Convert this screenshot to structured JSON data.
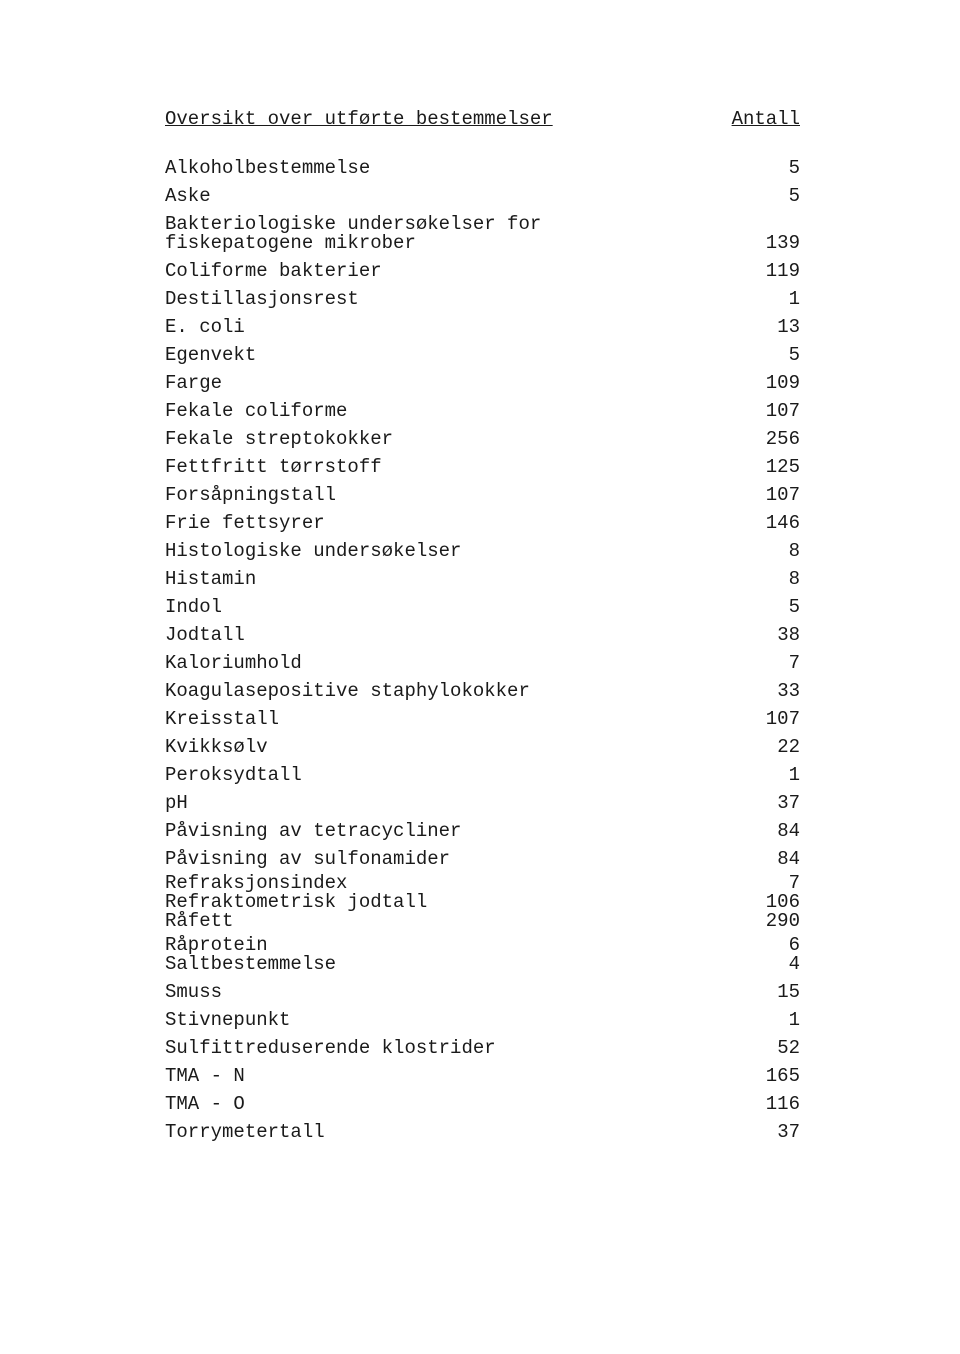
{
  "header": {
    "left": "Oversikt over utførte bestemmelser",
    "right": "Antall"
  },
  "rows": [
    {
      "label": "Alkoholbestemmelse",
      "value": "5"
    },
    {
      "label": "Aske",
      "value": "5"
    },
    {
      "label": "Bakteriologiske undersøkelser for\nfiskepatogene mikrober",
      "value": "139"
    },
    {
      "label": "Coliforme bakterier",
      "value": "119"
    },
    {
      "label": "Destillasjonsrest",
      "value": "1"
    },
    {
      "label": "E. coli",
      "value": "13"
    },
    {
      "label": "Egenvekt",
      "value": "5"
    },
    {
      "label": "Farge",
      "value": "109"
    },
    {
      "label": "Fekale coliforme",
      "value": "107"
    },
    {
      "label": "Fekale streptokokker",
      "value": "256"
    },
    {
      "label": "Fettfritt tørrstoff",
      "value": "125"
    },
    {
      "label": "Forsåpningstall",
      "value": "107"
    },
    {
      "label": "Frie fettsyrer",
      "value": "146"
    },
    {
      "label": "Histologiske undersøkelser",
      "value": "8"
    },
    {
      "label": "Histamin",
      "value": "8"
    },
    {
      "label": "Indol",
      "value": "5"
    },
    {
      "label": "Jodtall",
      "value": "38"
    },
    {
      "label": "Kaloriumhold",
      "value": "7"
    },
    {
      "label": "Koagulasepositive staphylokokker",
      "value": "33"
    },
    {
      "label": "Kreisstall",
      "value": "107"
    },
    {
      "label": "Kvikksølv",
      "value": "22"
    },
    {
      "label": "Peroksydtall",
      "value": "1"
    },
    {
      "label": "pH",
      "value": "37"
    },
    {
      "label": "Påvisning av tetracycliner",
      "value": "84"
    },
    {
      "label": "Påvisning av sulfonamider",
      "value": "84"
    },
    {
      "label": "Refraksjonsindex\nRefraktometrisk jodtall\nRåfett",
      "value": "7\n106\n290",
      "tight": true
    },
    {
      "label": "Råprotein\nSaltbestemmelse",
      "value": "6\n4",
      "tight": true
    },
    {
      "label": "Smuss",
      "value": "15"
    },
    {
      "label": "Stivnepunkt",
      "value": "1"
    },
    {
      "label": "Sulfittreduserende klostrider",
      "value": "52"
    },
    {
      "label": "TMA - N",
      "value": "165"
    },
    {
      "label": "TMA - O",
      "value": "116"
    },
    {
      "label": "Torrymetertall",
      "value": "37"
    }
  ]
}
